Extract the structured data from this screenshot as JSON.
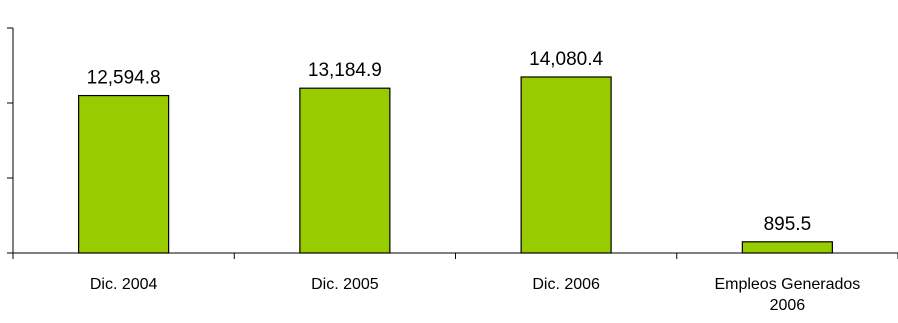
{
  "chart_data": {
    "type": "bar",
    "title": "",
    "xlabel": "",
    "ylabel": "",
    "categories": [
      "Dic. 2004",
      "Dic. 2005",
      "Dic. 2006",
      "Empleos Generados 2006"
    ],
    "category_lines": [
      [
        "Dic. 2004"
      ],
      [
        "Dic. 2005"
      ],
      [
        "Dic. 2006"
      ],
      [
        "Empleos Generados",
        "2006"
      ]
    ],
    "values": [
      12594.8,
      13184.9,
      14080.4,
      895.5
    ],
    "value_labels": [
      "12,594.8",
      "13,184.9",
      "14,080.4",
      "895.5"
    ],
    "ylim": [
      0,
      18000
    ],
    "y_ticks": [
      0,
      6000,
      12000,
      18000
    ],
    "grid": false,
    "legend": "none",
    "bar_color": "#99CC00",
    "bar_edge_color": "#000000"
  }
}
